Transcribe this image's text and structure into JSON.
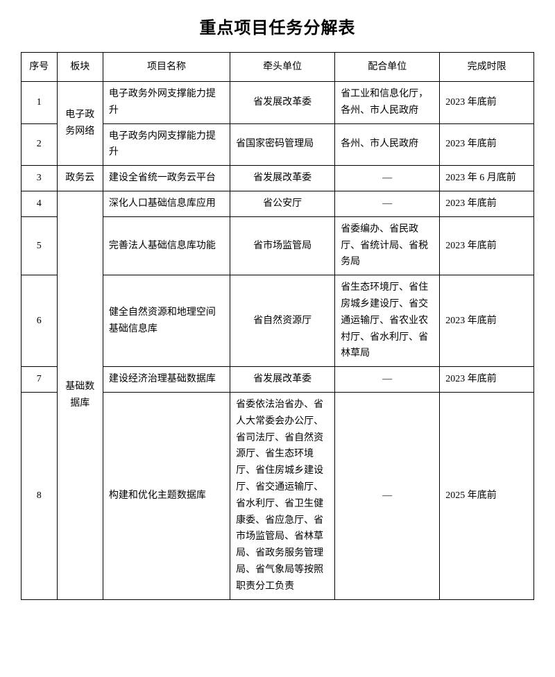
{
  "title": "重点项目任务分解表",
  "headers": {
    "seq": "序号",
    "section": "板块",
    "project": "项目名称",
    "lead": "牵头单位",
    "coop": "配合单位",
    "deadline": "完成时限"
  },
  "sections": {
    "s1": "电子政务网络",
    "s2": "政务云",
    "s3": "基础数据库"
  },
  "rows": {
    "r1": {
      "seq": "1",
      "project": "电子政务外网支撑能力提升",
      "lead": "省发展改革委",
      "coop": "省工业和信息化厅，各州、市人民政府",
      "deadline": "2023 年底前"
    },
    "r2": {
      "seq": "2",
      "project": "电子政务内网支撑能力提升",
      "lead": "省国家密码管理局",
      "coop": "各州、市人民政府",
      "deadline": "2023 年底前"
    },
    "r3": {
      "seq": "3",
      "project": "建设全省统一政务云平台",
      "lead": "省发展改革委",
      "coop": "—",
      "deadline": "2023 年 6 月底前"
    },
    "r4": {
      "seq": "4",
      "project": "深化人口基础信息库应用",
      "lead": "省公安厅",
      "coop": "—",
      "deadline": "2023 年底前"
    },
    "r5": {
      "seq": "5",
      "project": "完善法人基础信息库功能",
      "lead": "省市场监管局",
      "coop": "省委编办、省民政厅、省统计局、省税务局",
      "deadline": "2023 年底前"
    },
    "r6": {
      "seq": "6",
      "project": "健全自然资源和地理空间基础信息库",
      "lead": "省自然资源厅",
      "coop": "省生态环境厅、省住房城乡建设厅、省交通运输厅、省农业农村厅、省水利厅、省林草局",
      "deadline": "2023 年底前"
    },
    "r7": {
      "seq": "7",
      "project": "建设经济治理基础数据库",
      "lead": "省发展改革委",
      "coop": "—",
      "deadline": "2023 年底前"
    },
    "r8": {
      "seq": "8",
      "project": "构建和优化主题数据库",
      "lead": "省委依法治省办、省人大常委会办公厅、省司法厅、省自然资源厅、省生态环境厅、省住房城乡建设厅、省交通运输厅、省水利厅、省卫生健康委、省应急厅、省市场监管局、省林草局、省政务服务管理局、省气象局等按照职责分工负责",
      "coop": "—",
      "deadline": "2025 年底前"
    }
  }
}
